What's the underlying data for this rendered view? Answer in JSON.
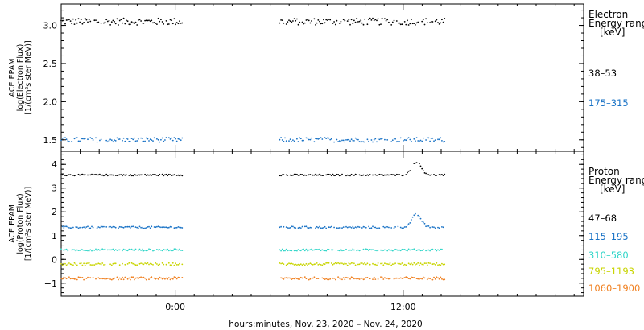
{
  "chart_data": [
    {
      "type": "scatter",
      "panel": "electron",
      "title": "",
      "ylabel_lines": [
        "ACE EPAM",
        "log(Electron Flux)",
        "[1/(cm²s ster MeV)]"
      ],
      "ylim": [
        1.35,
        3.28
      ],
      "yticks": [
        1.5,
        2.0,
        2.5,
        3.0
      ],
      "ytick_labels": [
        "1.5",
        "2.0",
        "2.5",
        "3.0"
      ],
      "legend_title_lines": [
        "Electron",
        "Energy ranges",
        "[keV]"
      ],
      "series": [
        {
          "name": "38–53",
          "color": "#000000",
          "base": 3.05,
          "noise": 0.045
        },
        {
          "name": "175–315",
          "color": "#1a73c6",
          "base": 1.5,
          "noise": 0.03
        }
      ]
    },
    {
      "type": "scatter",
      "panel": "proton",
      "title": "",
      "ylabel_lines": [
        "ACE EPAM",
        "log(Proton Flux)",
        "[1/(cm²s ster MeV)]"
      ],
      "ylim": [
        -1.55,
        4.55
      ],
      "yticks": [
        -1,
        0,
        1,
        2,
        3,
        4
      ],
      "ytick_labels": [
        "−1",
        "0",
        "1",
        "2",
        "3",
        "4"
      ],
      "legend_title_lines": [
        "Proton",
        "Energy ranges",
        "[keV]"
      ],
      "series": [
        {
          "name": "47–68",
          "color": "#000000",
          "base": 3.55,
          "noise": 0.03
        },
        {
          "name": "115–195",
          "color": "#1a73c6",
          "base": 1.35,
          "noise": 0.04
        },
        {
          "name": "310–580",
          "color": "#30d5c8",
          "base": 0.4,
          "noise": 0.04
        },
        {
          "name": "795–1193",
          "color": "#c8d400",
          "base": -0.2,
          "noise": 0.05
        },
        {
          "name": "1060–1900",
          "color": "#f08020",
          "base": -0.8,
          "noise": 0.06
        }
      ]
    }
  ],
  "x_axis": {
    "range_hours": [
      -6.0,
      21.5
    ],
    "data_segments_hours": [
      [
        -6.0,
        0.4
      ],
      [
        5.5,
        14.2
      ]
    ],
    "ticks_hours": [
      0,
      12
    ],
    "tick_labels": [
      "0:00",
      "12:00"
    ],
    "xlabel": "hours:minutes, Nov. 23, 2020 – Nov. 24, 2020"
  }
}
